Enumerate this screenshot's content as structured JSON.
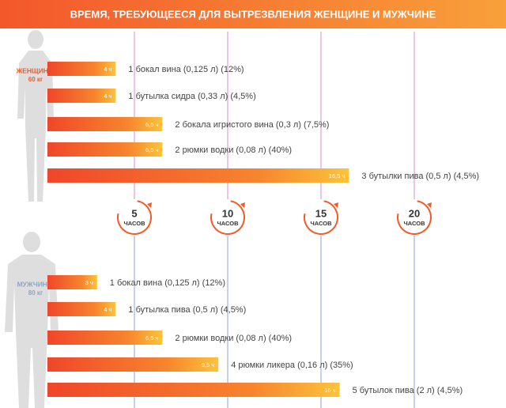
{
  "title": "ВРЕМЯ, ТРЕБУЮЩЕЕСЯ ДЛЯ ВЫТРЕЗВЛЕНИЯ ЖЕНЩИНЕ И МУЖЧИНЕ",
  "tick_unit": "ЧАСОВ",
  "chart_data": [
    {
      "type": "bar",
      "orientation": "horizontal",
      "group_label": [
        "ЖЕНЩИНА,",
        "60 кг"
      ],
      "group_color": "#f05a28",
      "grid_color": "#d98bd0",
      "categories": [
        "1 бокал вина (0,125 л) (12%)",
        "1 бутылка сидра (0,33 л) (4,5%)",
        "2 бокала игристого вина (0,3 л) (7,5%)",
        "2 рюмки водки (0,08 л) (40%)",
        "3 бутылки пива (0,5 л) (4,5%)"
      ],
      "values": [
        4,
        4,
        6.5,
        6.5,
        16.5
      ],
      "value_labels": [
        "4 ч",
        "4 ч",
        "6,5 ч",
        "6,5 ч",
        "16,5 ч"
      ],
      "xlim": [
        0,
        20
      ],
      "xticks": [
        5,
        10,
        15,
        20
      ]
    },
    {
      "type": "bar",
      "orientation": "horizontal",
      "group_label": [
        "МУЖЧИНА,",
        "80 кг"
      ],
      "group_color": "#8fa3c8",
      "grid_color": "#8fa3d6",
      "categories": [
        "1 бокал вина (0,125 л) (12%)",
        "1 бутылка пива (0,5 л) (4,5%)",
        "2 рюмки водки (0,08 л) (40%)",
        "4 рюмки ликера (0,16 л) (35%)",
        "5 бутылок пива (2 л) (4,5%)"
      ],
      "values": [
        3,
        4,
        6.5,
        9.5,
        16
      ],
      "value_labels": [
        "3 ч",
        "4 ч",
        "6,5 ч",
        "9,5 ч",
        "16 ч"
      ],
      "xlim": [
        0,
        20
      ],
      "xticks": [
        5,
        10,
        15,
        20
      ]
    }
  ]
}
